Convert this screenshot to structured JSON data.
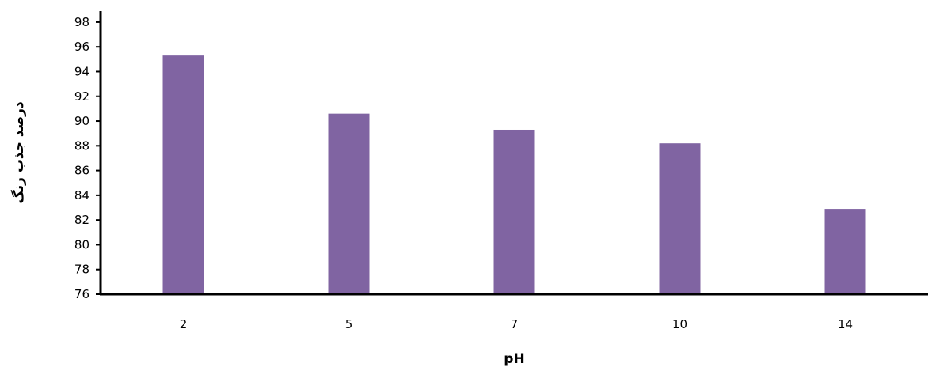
{
  "chart_data": {
    "type": "bar",
    "title": "",
    "xlabel": "pH",
    "ylabel": "درصد جذب رنگ",
    "categories": [
      "2",
      "5",
      "7",
      "10",
      "14"
    ],
    "values": [
      95.3,
      90.6,
      89.3,
      88.2,
      82.9
    ],
    "ylim": [
      76,
      99
    ],
    "yticks": [
      76,
      78,
      80,
      82,
      84,
      86,
      88,
      90,
      92,
      94,
      96,
      98
    ],
    "grid": false,
    "legend": "none",
    "bar_color": "#8064A2",
    "axis_color": "#000000"
  }
}
